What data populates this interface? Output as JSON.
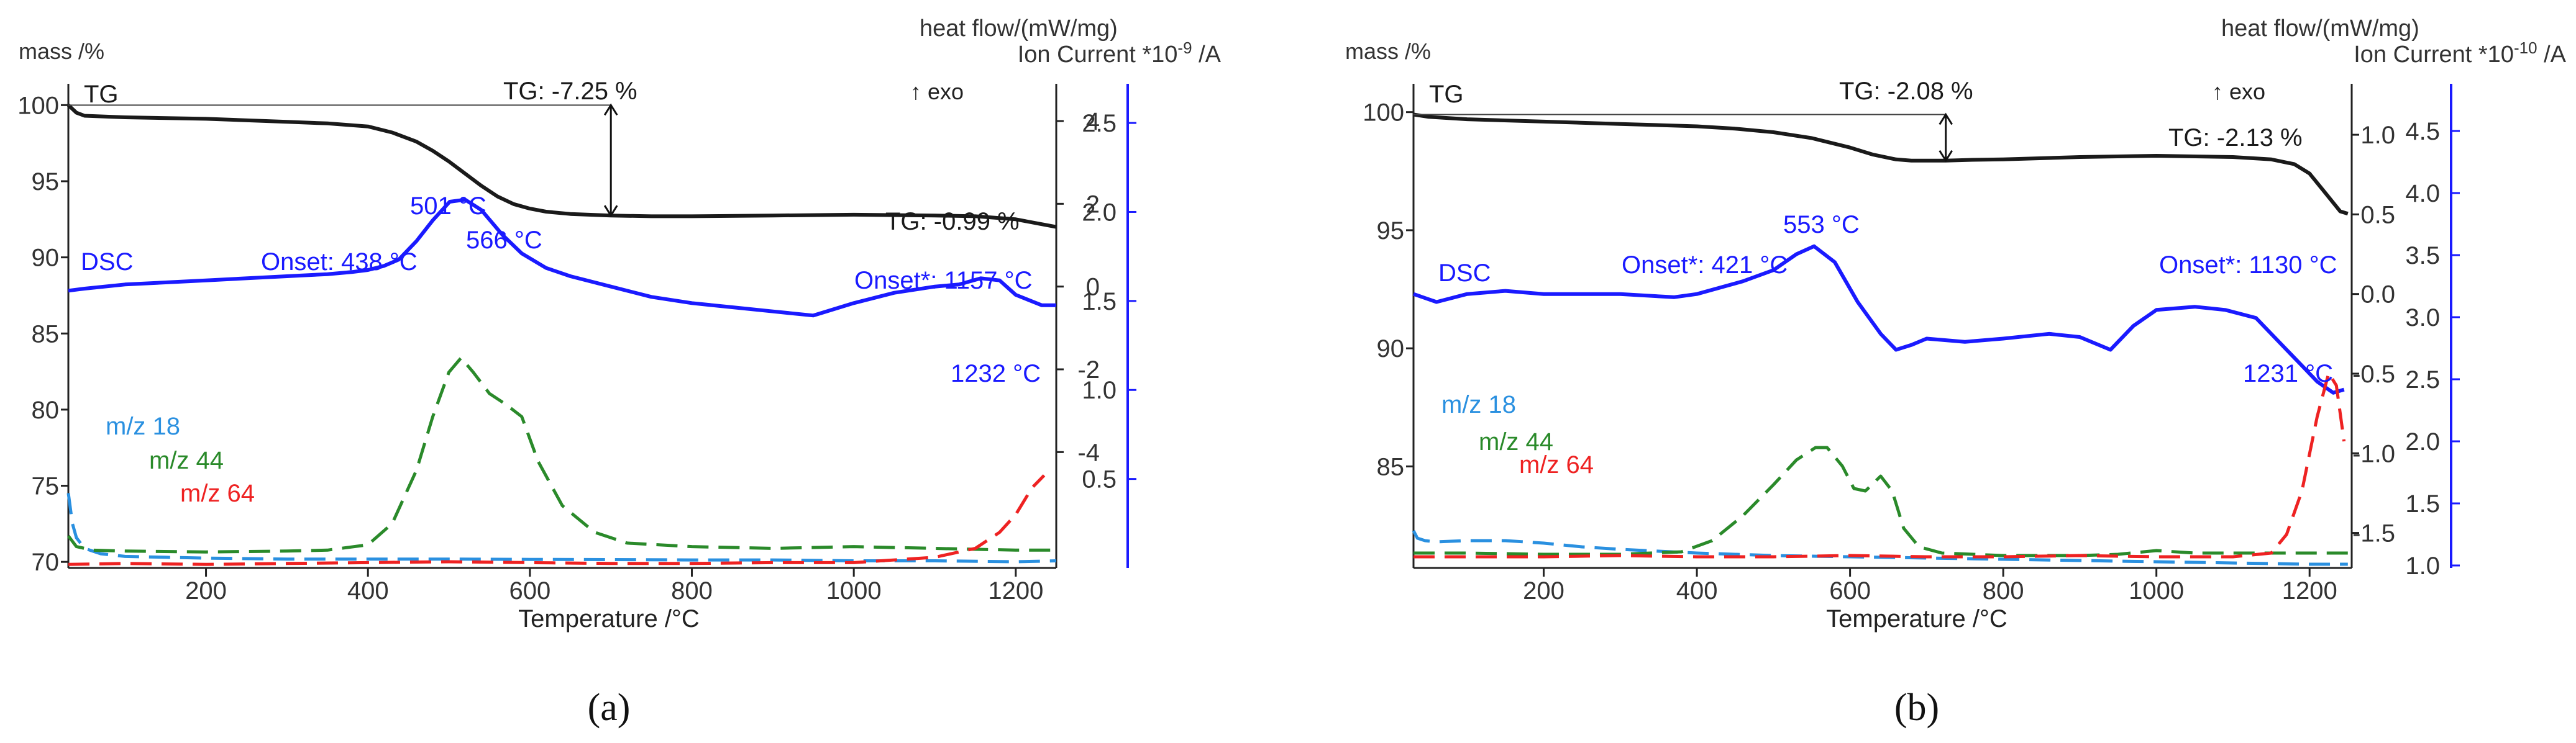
{
  "chart_data": [
    {
      "type": "line",
      "panel_label": "(a)",
      "panel_letter": "a",
      "xlabel": "Temperature /°C",
      "xlim": [
        30,
        1250
      ],
      "x_ticks": [
        200,
        400,
        600,
        800,
        1000,
        1200
      ],
      "axes": {
        "mass": {
          "label": "mass /%",
          "lim": [
            69.6,
            101.4
          ],
          "ticks": [
            70,
            75,
            80,
            85,
            90,
            95,
            100
          ]
        },
        "heat_flow": {
          "label": "heat flow/(mW/mg)",
          "lim": [
            -6.8,
            4.9
          ],
          "ticks": [
            -4,
            -2,
            0,
            2,
            4
          ]
        },
        "ion_current": {
          "label": "Ion Current *10",
          "exponent": "-9",
          "unit": " /A",
          "lim": [
            0,
            2.72
          ],
          "ticks": [
            0.5,
            1.0,
            1.5,
            2.0,
            2.5
          ]
        }
      },
      "exo_label": "↑ exo",
      "colors": {
        "tg": "#1a1a1a",
        "dsc": "#1a1aff",
        "mz18": "#2a90e0",
        "mz44": "#2a8a2a",
        "mz64": "#ee2222"
      },
      "series": [
        {
          "name": "TG",
          "key": "tg",
          "axis": "mass",
          "dashed": false,
          "x": [
            30,
            40,
            50,
            100,
            200,
            300,
            350,
            400,
            430,
            460,
            480,
            500,
            520,
            540,
            560,
            580,
            600,
            620,
            650,
            700,
            750,
            800,
            900,
            1000,
            1100,
            1150,
            1200,
            1230,
            1250
          ],
          "y": [
            100.0,
            99.5,
            99.3,
            99.2,
            99.1,
            98.9,
            98.8,
            98.6,
            98.2,
            97.6,
            97.0,
            96.3,
            95.5,
            94.7,
            94.0,
            93.5,
            93.2,
            93.0,
            92.85,
            92.75,
            92.7,
            92.7,
            92.75,
            92.8,
            92.75,
            92.7,
            92.5,
            92.2,
            92.0
          ]
        },
        {
          "name": "DSC",
          "key": "dsc",
          "axis": "heat_flow",
          "dashed": false,
          "x": [
            30,
            50,
            100,
            200,
            300,
            350,
            380,
            400,
            420,
            438,
            460,
            480,
            501,
            520,
            540,
            566,
            590,
            620,
            650,
            700,
            750,
            800,
            850,
            900,
            950,
            1000,
            1050,
            1100,
            1130,
            1157,
            1180,
            1200,
            1232,
            1250
          ],
          "y": [
            -0.1,
            -0.05,
            0.05,
            0.15,
            0.25,
            0.3,
            0.35,
            0.4,
            0.5,
            0.65,
            1.1,
            1.6,
            2.05,
            2.1,
            1.85,
            1.25,
            0.8,
            0.45,
            0.25,
            0.0,
            -0.25,
            -0.4,
            -0.5,
            -0.6,
            -0.7,
            -0.4,
            -0.15,
            0.0,
            0.05,
            0.2,
            0.15,
            -0.2,
            -0.45,
            -0.45
          ]
        },
        {
          "name": "m/z 18",
          "key": "mz18",
          "axis": "ion_current",
          "dashed": true,
          "x": [
            30,
            35,
            40,
            50,
            70,
            100,
            150,
            200,
            300,
            400,
            500,
            600,
            700,
            800,
            900,
            1000,
            1100,
            1200,
            1250
          ],
          "y": [
            0.42,
            0.25,
            0.17,
            0.11,
            0.08,
            0.065,
            0.06,
            0.055,
            0.05,
            0.05,
            0.05,
            0.048,
            0.047,
            0.045,
            0.045,
            0.04,
            0.04,
            0.035,
            0.04
          ]
        },
        {
          "name": "m/z 44",
          "key": "mz44",
          "axis": "ion_current",
          "dashed": true,
          "x": [
            30,
            40,
            60,
            100,
            200,
            300,
            350,
            400,
            430,
            460,
            480,
            500,
            515,
            530,
            550,
            570,
            590,
            610,
            640,
            680,
            720,
            800,
            900,
            1000,
            1100,
            1200,
            1250
          ],
          "y": [
            0.18,
            0.12,
            0.1,
            0.095,
            0.09,
            0.095,
            0.1,
            0.13,
            0.25,
            0.55,
            0.85,
            1.1,
            1.18,
            1.1,
            0.98,
            0.92,
            0.85,
            0.6,
            0.35,
            0.2,
            0.14,
            0.12,
            0.11,
            0.12,
            0.11,
            0.1,
            0.1
          ]
        },
        {
          "name": "m/z 64",
          "key": "mz64",
          "axis": "ion_current",
          "dashed": true,
          "x": [
            30,
            100,
            200,
            300,
            400,
            500,
            600,
            700,
            800,
            900,
            1000,
            1100,
            1150,
            1180,
            1200,
            1220,
            1235
          ],
          "y": [
            0.02,
            0.025,
            0.02,
            0.025,
            0.03,
            0.035,
            0.03,
            0.025,
            0.025,
            0.03,
            0.03,
            0.06,
            0.11,
            0.2,
            0.3,
            0.45,
            0.52
          ]
        }
      ],
      "annotations": [
        {
          "text": "TG",
          "key": "tg"
        },
        {
          "text": "TG: -7.25 %",
          "key": "tg"
        },
        {
          "text": "TG: -0.99 %",
          "key": "tg"
        },
        {
          "text": "DSC",
          "key": "dsc"
        },
        {
          "text": "Onset: 438 °C",
          "key": "dsc"
        },
        {
          "text": "501 °C",
          "key": "dsc"
        },
        {
          "text": "566 °C",
          "key": "dsc"
        },
        {
          "text": "Onset*: 1157 °C",
          "key": "dsc"
        },
        {
          "text": "1232 °C",
          "key": "dsc"
        },
        {
          "text": "m/z 18",
          "key": "mz18"
        },
        {
          "text": "m/z 44",
          "key": "mz44"
        },
        {
          "text": "m/z 64",
          "key": "mz64"
        }
      ]
    },
    {
      "type": "line",
      "panel_label": "(b)",
      "panel_letter": "b",
      "xlabel": "Temperature /°C",
      "xlim": [
        30,
        1255
      ],
      "x_ticks": [
        200,
        400,
        600,
        800,
        1000,
        1200
      ],
      "axes": {
        "mass": {
          "label": "mass /%",
          "lim": [
            80.7,
            101.2
          ],
          "ticks": [
            85,
            90,
            95,
            100
          ]
        },
        "heat_flow": {
          "label": "heat flow/(mW/mg)",
          "lim": [
            -1.72,
            1.32
          ],
          "ticks": [
            -1.5,
            -1.0,
            -0.5,
            0.0,
            0.5,
            1.0
          ]
        },
        "ion_current": {
          "label": "Ion Current *10",
          "exponent": "-10",
          "unit": " /A",
          "lim": [
            0.98,
            4.88
          ],
          "ticks": [
            1.0,
            1.5,
            2.0,
            2.5,
            3.0,
            3.5,
            4.0,
            4.5
          ]
        }
      },
      "exo_label": "↑ exo",
      "colors": {
        "tg": "#1a1a1a",
        "dsc": "#1a1aff",
        "mz18": "#2a90e0",
        "mz44": "#2a8a2a",
        "mz64": "#ee2222"
      },
      "series": [
        {
          "name": "TG",
          "key": "tg",
          "axis": "mass",
          "dashed": false,
          "x": [
            30,
            50,
            100,
            200,
            300,
            400,
            450,
            500,
            550,
            600,
            630,
            660,
            680,
            700,
            725,
            760,
            800,
            900,
            1000,
            1100,
            1150,
            1180,
            1200,
            1220,
            1240,
            1250
          ],
          "y": [
            99.9,
            99.8,
            99.7,
            99.6,
            99.5,
            99.4,
            99.3,
            99.15,
            98.9,
            98.5,
            98.2,
            98.0,
            97.95,
            97.95,
            97.95,
            97.98,
            98.0,
            98.1,
            98.15,
            98.1,
            98.0,
            97.8,
            97.4,
            96.6,
            95.8,
            95.7
          ]
        },
        {
          "name": "DSC",
          "key": "dsc",
          "axis": "heat_flow",
          "dashed": false,
          "x": [
            30,
            60,
            100,
            150,
            200,
            300,
            370,
            400,
            460,
            500,
            530,
            553,
            580,
            610,
            640,
            660,
            680,
            700,
            750,
            800,
            860,
            900,
            940,
            970,
            1000,
            1050,
            1090,
            1130,
            1160,
            1190,
            1210,
            1231,
            1245
          ],
          "y": [
            0.0,
            -0.05,
            0.0,
            0.02,
            0.0,
            0.0,
            -0.02,
            0.0,
            0.08,
            0.15,
            0.25,
            0.3,
            0.2,
            -0.05,
            -0.25,
            -0.35,
            -0.32,
            -0.28,
            -0.3,
            -0.28,
            -0.25,
            -0.27,
            -0.35,
            -0.2,
            -0.1,
            -0.08,
            -0.1,
            -0.15,
            -0.3,
            -0.45,
            -0.55,
            -0.62,
            -0.6
          ]
        },
        {
          "name": "m/z 18",
          "key": "mz18",
          "axis": "ion_current",
          "dashed": true,
          "x": [
            30,
            35,
            45,
            60,
            100,
            150,
            200,
            250,
            300,
            400,
            500,
            600,
            700,
            800,
            900,
            1000,
            1100,
            1200,
            1250
          ],
          "y": [
            1.28,
            1.22,
            1.2,
            1.19,
            1.2,
            1.2,
            1.18,
            1.15,
            1.13,
            1.1,
            1.08,
            1.07,
            1.06,
            1.05,
            1.04,
            1.03,
            1.02,
            1.01,
            1.01
          ]
        },
        {
          "name": "m/z 44",
          "key": "mz44",
          "axis": "ion_current",
          "dashed": true,
          "x": [
            30,
            100,
            200,
            300,
            380,
            420,
            460,
            500,
            530,
            555,
            570,
            590,
            605,
            620,
            640,
            655,
            670,
            690,
            720,
            800,
            900,
            950,
            1000,
            1050,
            1100,
            1200,
            1250
          ],
          "y": [
            1.1,
            1.1,
            1.09,
            1.09,
            1.11,
            1.2,
            1.4,
            1.65,
            1.85,
            1.95,
            1.95,
            1.8,
            1.62,
            1.6,
            1.72,
            1.6,
            1.3,
            1.15,
            1.1,
            1.08,
            1.08,
            1.09,
            1.12,
            1.1,
            1.1,
            1.1,
            1.1
          ]
        },
        {
          "name": "m/z 64",
          "key": "mz64",
          "axis": "ion_current",
          "dashed": true,
          "x": [
            30,
            100,
            200,
            300,
            400,
            500,
            600,
            700,
            800,
            900,
            1000,
            1100,
            1150,
            1170,
            1190,
            1210,
            1225,
            1235,
            1245
          ],
          "y": [
            1.07,
            1.07,
            1.07,
            1.08,
            1.07,
            1.07,
            1.08,
            1.07,
            1.07,
            1.08,
            1.07,
            1.07,
            1.1,
            1.25,
            1.6,
            2.2,
            2.55,
            2.45,
            2.0
          ]
        }
      ],
      "annotations": [
        {
          "text": "TG",
          "key": "tg"
        },
        {
          "text": "TG: -2.08 %",
          "key": "tg"
        },
        {
          "text": "TG: -2.13 %",
          "key": "tg"
        },
        {
          "text": "DSC",
          "key": "dsc"
        },
        {
          "text": "Onset*: 421 °C",
          "key": "dsc"
        },
        {
          "text": "553 °C",
          "key": "dsc"
        },
        {
          "text": "Onset*: 1130 °C",
          "key": "dsc"
        },
        {
          "text": "1231 °C",
          "key": "dsc"
        },
        {
          "text": "m/z 18",
          "key": "mz18"
        },
        {
          "text": "m/z 44",
          "key": "mz44"
        },
        {
          "text": "m/z 64",
          "key": "mz64"
        }
      ]
    }
  ]
}
